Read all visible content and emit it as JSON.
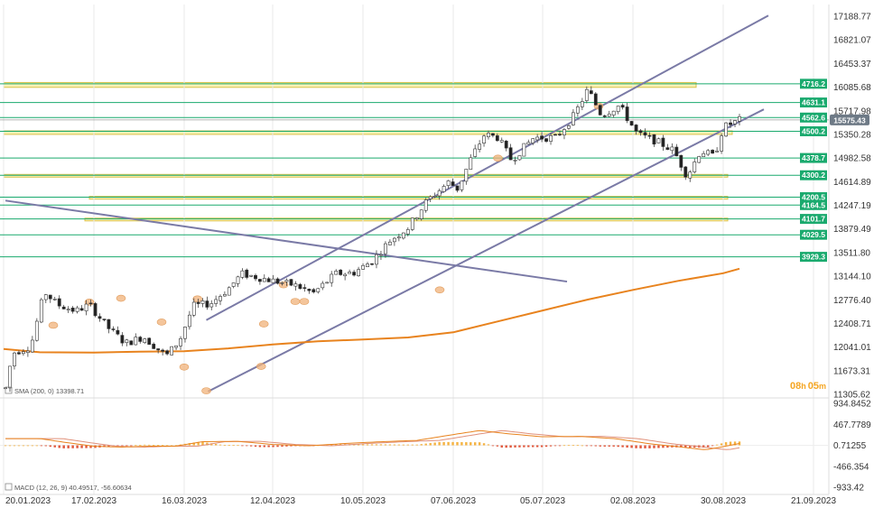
{
  "chart_data": [
    {
      "type": "candlestick",
      "title": "",
      "indicator_legend": "SMA (200, 0)  13398.71",
      "y_ticks": [
        17188.77,
        16821.07,
        16453.37,
        16085.68,
        15717.98,
        15350.28,
        14982.58,
        14614.89,
        14247.19,
        13879.49,
        13511.8,
        13144.1,
        12776.4,
        12408.71,
        12041.01,
        11673.31,
        11305.62
      ],
      "ylim": [
        11305.62,
        17188.77
      ],
      "x_ticks": [
        "20.01.2023",
        "17.02.2023",
        "16.03.2023",
        "12.04.2023",
        "10.05.2023",
        "07.06.2023",
        "05.07.2023",
        "02.08.2023",
        "30.08.2023",
        "21.09.2023"
      ],
      "current_price": "15575.43",
      "countdown": {
        "hours": "08",
        "h": "h",
        "minutes": "05",
        "m": "m"
      },
      "price_to_level_scale": 3.4218,
      "levels": [
        {
          "label": "4716.2",
          "value": 4716.2,
          "color": "#1aaa6e"
        },
        {
          "label": "4631.1",
          "value": 4631.1,
          "color": "#1aaa6e"
        },
        {
          "label": "4562.6",
          "value": 4562.6,
          "color": "#1aaa6e"
        },
        {
          "label": "4500.2",
          "value": 4500.2,
          "color": "#1aaa6e"
        },
        {
          "label": "4378.7",
          "value": 4378.7,
          "color": "#1aaa6e"
        },
        {
          "label": "4300.2",
          "value": 4300.2,
          "color": "#1aaa6e"
        },
        {
          "label": "4200.5",
          "value": 4200.5,
          "color": "#1aaa6e"
        },
        {
          "label": "4164.5",
          "value": 4164.5,
          "color": "#1aaa6e"
        },
        {
          "label": "4101.7",
          "value": 4101.7,
          "color": "#1aaa6e"
        },
        {
          "label": "4029.5",
          "value": 4029.5,
          "color": "#1aaa6e"
        },
        {
          "label": "3929.3",
          "value": 3929.3,
          "color": "#1aaa6e"
        }
      ],
      "series": [
        {
          "name": "SMA (200, 0)",
          "color": "#e8831e"
        }
      ],
      "colors": {
        "up": "#ffffff",
        "down": "#222222",
        "wick": "#444444",
        "zone_fill": "#fbf0a8",
        "zone_edge": "#d8c24a",
        "trendline": "#7a7aa6",
        "marker": "#f0b27a",
        "price_tag": "#6e7a86"
      }
    },
    {
      "type": "bar",
      "title": "",
      "indicator_legend": "MACD (12, 26, 9)  40.49517,  -56.60634",
      "y_ticks": [
        934.8452,
        467.7789,
        0.71255,
        -466.354,
        -933.42
      ],
      "ylim": [
        -933.42,
        934.8452
      ],
      "series": [
        {
          "name": "MACD",
          "color": "#e8831e"
        },
        {
          "name": "Signal",
          "color": "#e0907a"
        }
      ],
      "colors": {
        "positive": "#f5b342",
        "negative": "#e0563a"
      }
    }
  ]
}
